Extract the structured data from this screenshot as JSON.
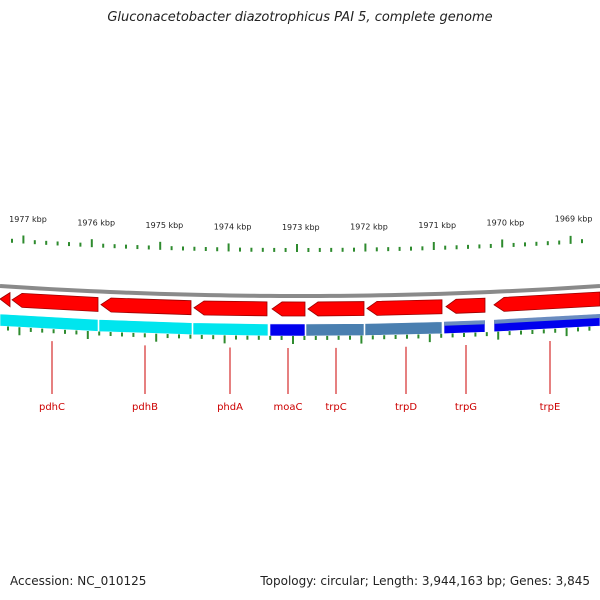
{
  "title": "Gluconacetobacter diazotrophicus PAI 5, complete genome",
  "footer": {
    "accession": "Accession: NC_010125",
    "summary": "Topology: circular; Length: 3,944,163 bp; Genes: 3,845"
  },
  "colors": {
    "backbone": "#8a8a8a",
    "forward_cds": "#ff0000",
    "forward_cds_shadow": "#9a0000",
    "tick": "#2e8b2e",
    "label_line": "#cc0000",
    "label_text": "#cc0000",
    "lane_cyan": "#00e5ee",
    "lane_blue": "#0000ee",
    "lane_steel": "#4a7fb0",
    "lane_slate": "#6a8cc0"
  },
  "scale_ticks": [
    "1977 kbp",
    "1976 kbp",
    "1975 kbp",
    "1974 kbp",
    "1973 kbp",
    "1972 kbp",
    "1971 kbp",
    "1970 kbp",
    "1969 kbp"
  ],
  "genes": [
    "pdhC",
    "pdhB",
    "phdA",
    "moaC",
    "trpC",
    "trpD",
    "trpG",
    "trpE"
  ]
}
